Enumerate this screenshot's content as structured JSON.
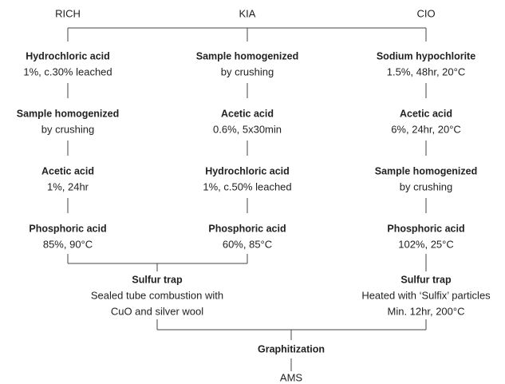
{
  "headers": [
    "RICH",
    "KIA",
    "CIO"
  ],
  "columns": [
    {
      "steps": [
        {
          "title": "Hydrochloric acid",
          "detail": "1%, c.30% leached"
        },
        {
          "title": "Sample homogenized",
          "detail": "by crushing"
        },
        {
          "title": "Acetic acid",
          "detail": "1%, 24hr"
        },
        {
          "title": "Phosphoric acid",
          "detail": "85%, 90°C"
        }
      ]
    },
    {
      "steps": [
        {
          "title": "Sample homogenized",
          "detail": "by crushing"
        },
        {
          "title": "Acetic acid",
          "detail": "0.6%, 5x30min"
        },
        {
          "title": "Hydrochloric acid",
          "detail": "1%, c.50% leached"
        },
        {
          "title": "Phosphoric acid",
          "detail": "60%, 85°C"
        }
      ]
    },
    {
      "steps": [
        {
          "title": "Sodium hypochlorite",
          "detail": "1.5%, 48hr, 20°C"
        },
        {
          "title": "Acetic acid",
          "detail": "6%, 24hr, 20°C"
        },
        {
          "title": "Sample homogenized",
          "detail": "by crushing"
        },
        {
          "title": "Phosphoric acid",
          "detail": "102%, 25°C"
        }
      ]
    }
  ],
  "sulfur_traps": [
    {
      "title": "Sulfur trap",
      "lines": [
        "Sealed tube combustion with",
        "CuO and silver wool"
      ]
    },
    {
      "title": "Sulfur trap",
      "lines": [
        "Heated with ‘Sulfix’ particles",
        "Min. 12hr, 200°C"
      ]
    }
  ],
  "graphitization": "Graphitization",
  "final": "AMS"
}
